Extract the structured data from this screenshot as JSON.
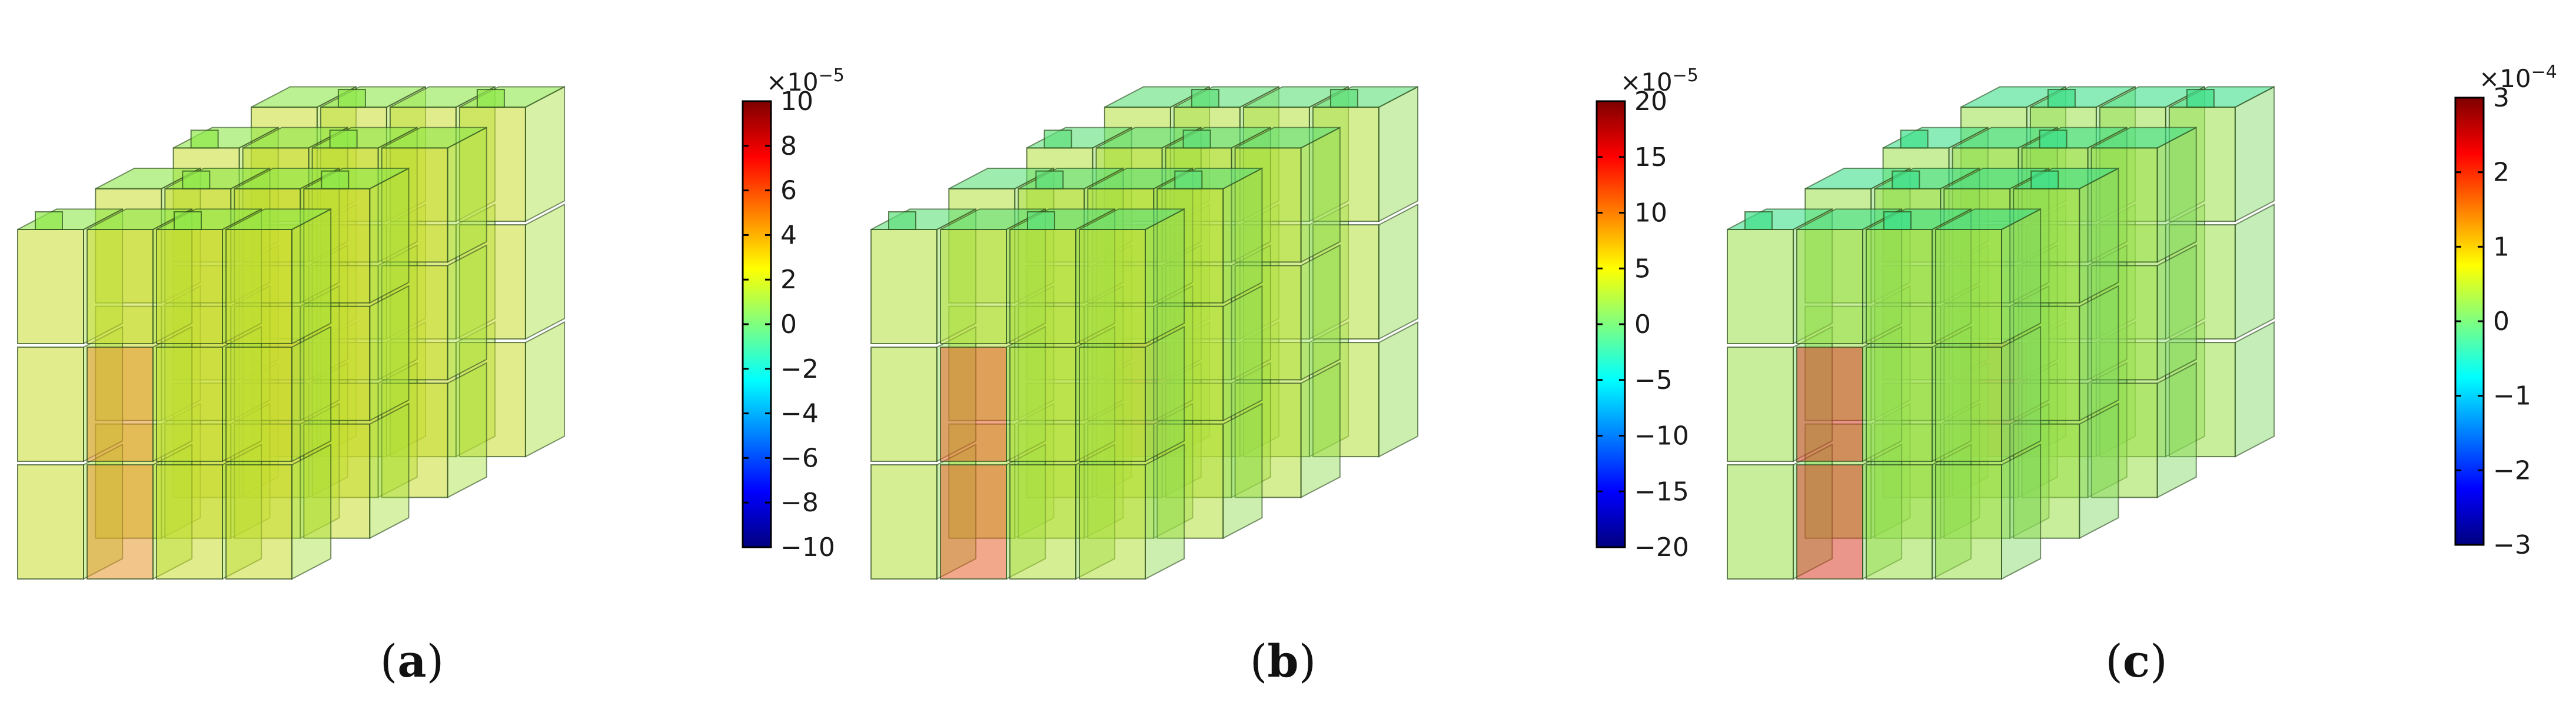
{
  "figure": {
    "panels": [
      {
        "id": "a",
        "caption_open": "(",
        "caption_letter": "a",
        "caption_close": ")",
        "colorbar": {
          "exponent_base": "×10",
          "exponent_power": "−5",
          "tick_labels": [
            "10",
            "8",
            "6",
            "4",
            "2",
            "0",
            "−2",
            "−4",
            "−6",
            "−8",
            "−10"
          ],
          "range": [
            -10,
            10
          ]
        },
        "cube_palette": {
          "top": "#8ee84a",
          "front": "#c8dc2e",
          "side": "#a7e03a",
          "hot": "#e8962c"
        }
      },
      {
        "id": "b",
        "caption_open": "(",
        "caption_letter": "b",
        "caption_close": ")",
        "colorbar": {
          "exponent_base": "×10",
          "exponent_power": "−5",
          "tick_labels": [
            "20",
            "15",
            "10",
            "5",
            "0",
            "−5",
            "−10",
            "−15",
            "−20"
          ],
          "range": [
            -20,
            20
          ]
        },
        "cube_palette": {
          "top": "#5fe07a",
          "front": "#b5e03a",
          "side": "#8fdc50",
          "hot": "#e8602a"
        }
      },
      {
        "id": "c",
        "caption_open": "(",
        "caption_letter": "c",
        "caption_close": ")",
        "colorbar": {
          "exponent_base": "×10",
          "exponent_power": "−4",
          "tick_labels": [
            "3",
            "2",
            "1",
            "0",
            "−1",
            "−2",
            "−3"
          ],
          "range": [
            -3,
            3
          ]
        },
        "cube_palette": {
          "top": "#3fe08a",
          "front": "#9be048",
          "side": "#7fd860",
          "hot": "#d8402a"
        }
      }
    ],
    "colors": {
      "jet": [
        "#00007f",
        "#0000ff",
        "#007fff",
        "#00ffff",
        "#7fff7f",
        "#ffff00",
        "#ff7f00",
        "#ff0000",
        "#7f0000"
      ],
      "edge": "#2a4a1a"
    }
  }
}
